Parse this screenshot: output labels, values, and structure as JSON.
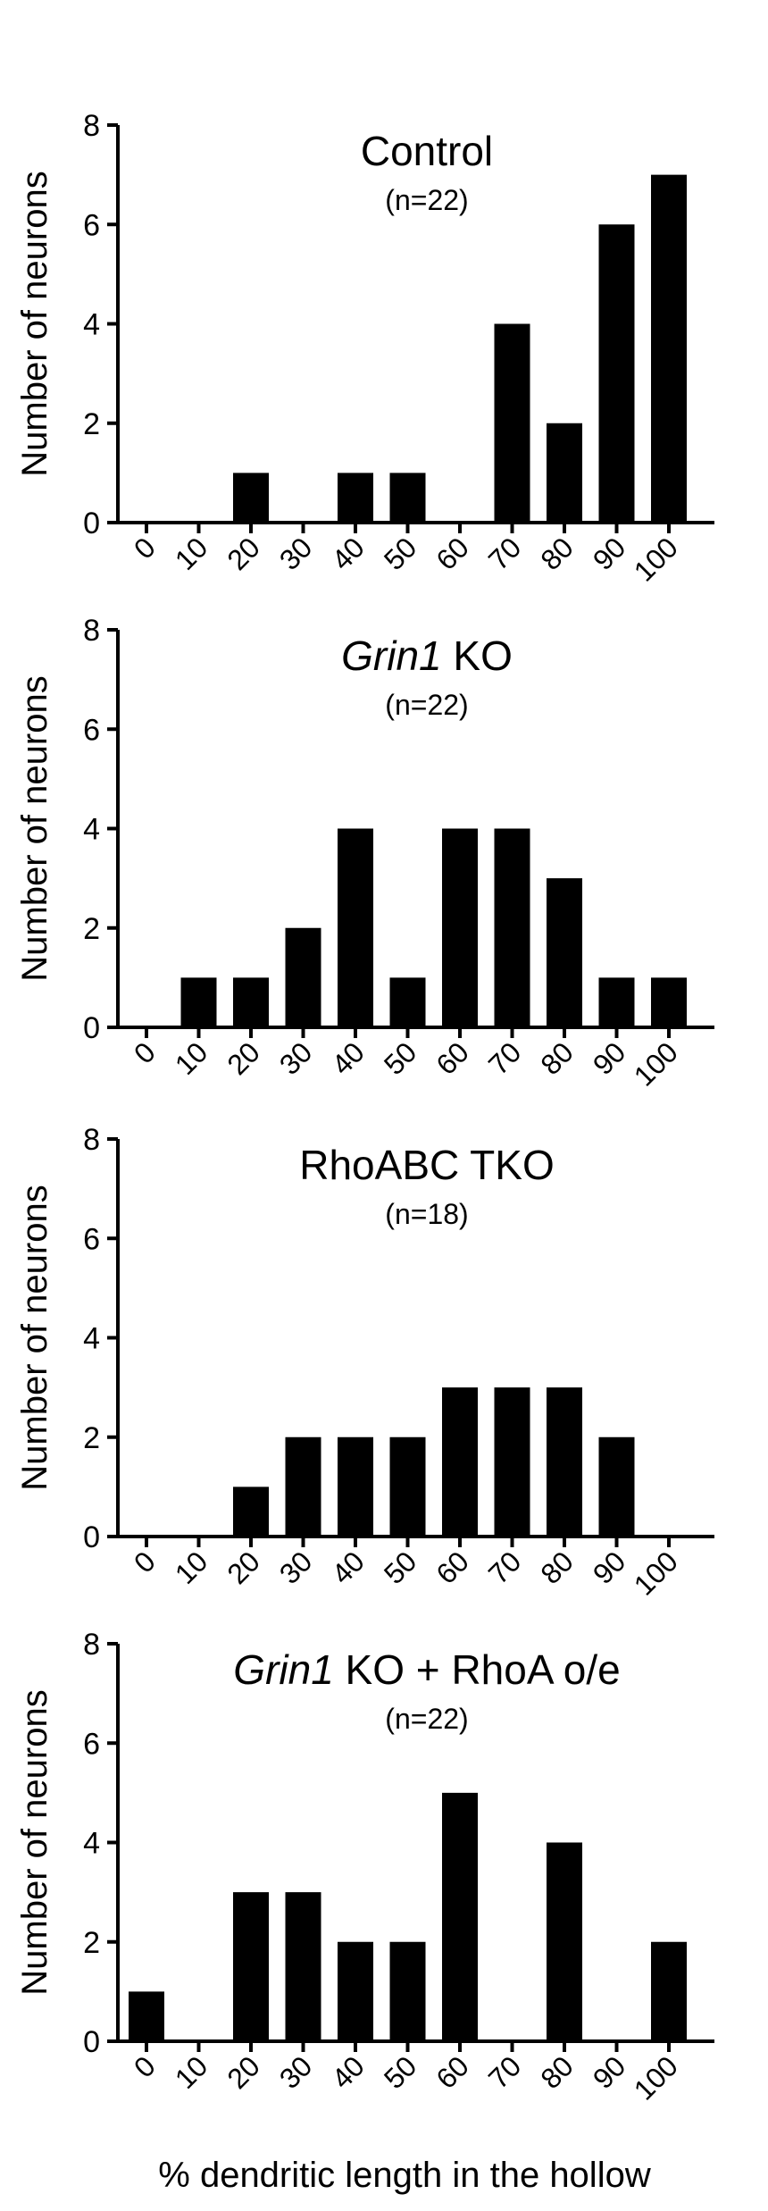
{
  "figure": {
    "shared_xlabel": "% dendritic length in the hollow"
  },
  "chart_data": [
    {
      "type": "bar",
      "title_parts": [
        {
          "text": "Control",
          "italic": false
        }
      ],
      "subtitle": "(n=22)",
      "ylabel": "Number of neurons",
      "xlabel": "",
      "categories": [
        "0",
        "10",
        "20",
        "30",
        "40",
        "50",
        "60",
        "70",
        "80",
        "90",
        "100"
      ],
      "values": [
        0,
        0,
        1,
        0,
        1,
        1,
        0,
        4,
        2,
        6,
        7
      ],
      "ylim": [
        0,
        8
      ],
      "yticks": [
        0,
        2,
        4,
        6,
        8
      ],
      "bar_color": "#000000",
      "grid": false,
      "legend": false
    },
    {
      "type": "bar",
      "title_parts": [
        {
          "text": "Grin1",
          "italic": true
        },
        {
          "text": " KO",
          "italic": false
        }
      ],
      "subtitle": "(n=22)",
      "ylabel": "Number of neurons",
      "xlabel": "",
      "categories": [
        "0",
        "10",
        "20",
        "30",
        "40",
        "50",
        "60",
        "70",
        "80",
        "90",
        "100"
      ],
      "values": [
        0,
        1,
        1,
        2,
        4,
        1,
        4,
        4,
        3,
        1,
        1
      ],
      "ylim": [
        0,
        8
      ],
      "yticks": [
        0,
        2,
        4,
        6,
        8
      ],
      "bar_color": "#000000",
      "grid": false,
      "legend": false
    },
    {
      "type": "bar",
      "title_parts": [
        {
          "text": "RhoABC TKO",
          "italic": false
        }
      ],
      "subtitle": "(n=18)",
      "ylabel": "Number of neurons",
      "xlabel": "",
      "categories": [
        "0",
        "10",
        "20",
        "30",
        "40",
        "50",
        "60",
        "70",
        "80",
        "90",
        "100"
      ],
      "values": [
        0,
        0,
        1,
        2,
        2,
        2,
        3,
        3,
        3,
        2,
        0
      ],
      "ylim": [
        0,
        8
      ],
      "yticks": [
        0,
        2,
        4,
        6,
        8
      ],
      "bar_color": "#000000",
      "grid": false,
      "legend": false
    },
    {
      "type": "bar",
      "title_parts": [
        {
          "text": "Grin1",
          "italic": true
        },
        {
          "text": " KO + RhoA o/e",
          "italic": false
        }
      ],
      "subtitle": "(n=22)",
      "ylabel": "Number of neurons",
      "xlabel": "% dendritic length in the hollow",
      "categories": [
        "0",
        "10",
        "20",
        "30",
        "40",
        "50",
        "60",
        "70",
        "80",
        "90",
        "100"
      ],
      "values": [
        1,
        0,
        3,
        3,
        2,
        2,
        5,
        0,
        4,
        0,
        2
      ],
      "ylim": [
        0,
        8
      ],
      "yticks": [
        0,
        2,
        4,
        6,
        8
      ],
      "bar_color": "#000000",
      "grid": false,
      "legend": false
    }
  ]
}
